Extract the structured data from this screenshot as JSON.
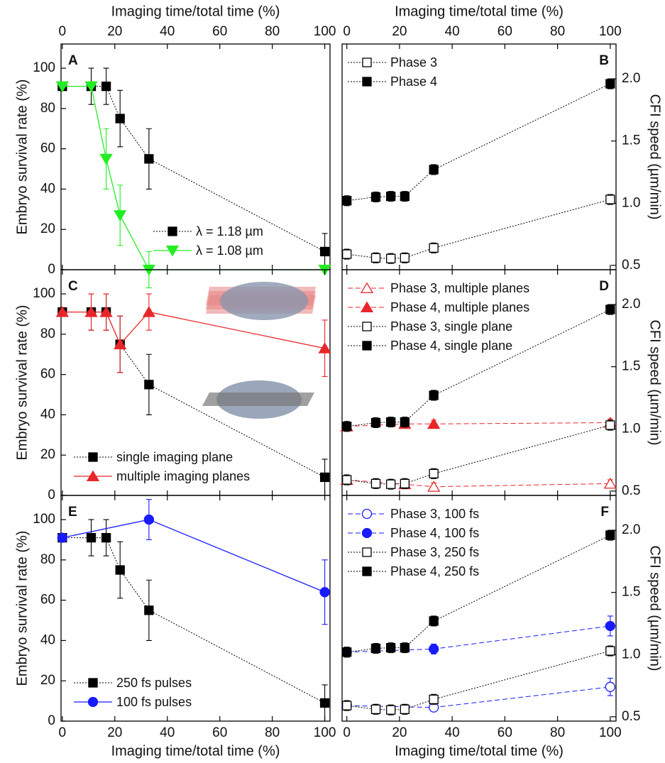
{
  "chart_data": [
    {
      "type": "line",
      "panel": "A",
      "xlabel": "Imaging time/total time (%)",
      "xaxis": "top",
      "ylabel": "Embryo survival rate (%)",
      "xlim": [
        -0.5,
        102
      ],
      "ylim": [
        0,
        112
      ],
      "xticks": [
        0,
        20,
        40,
        60,
        80,
        100
      ],
      "yticks": [
        0,
        20,
        40,
        60,
        80,
        100
      ],
      "legend": "lower right",
      "series": [
        {
          "name": "λ = 1.18 µm",
          "color": "#000000",
          "marker": "square",
          "filled": true,
          "linestyle": "dotted",
          "x": [
            0,
            11,
            16.7,
            22,
            33,
            100
          ],
          "values": [
            91,
            91,
            91,
            75,
            55,
            9
          ],
          "errors": [
            0,
            9,
            9,
            14,
            15,
            9
          ]
        },
        {
          "name": "λ = 1.08 µm",
          "color": "#22ee22",
          "marker": "triangle-down",
          "filled": true,
          "linestyle": "solid",
          "x": [
            0,
            11,
            16.7,
            22,
            33,
            100
          ],
          "values": [
            91,
            91,
            55,
            27,
            0,
            0
          ],
          "errors": [
            0,
            0,
            15,
            15,
            9,
            0
          ]
        }
      ]
    },
    {
      "type": "line",
      "panel": "B",
      "xlabel": "Imaging time/total time (%)",
      "xaxis": "top",
      "ylabel": "CFI speed (µm/min)",
      "xlim": [
        -1.8,
        102.2
      ],
      "ylim": [
        0.465,
        2.28
      ],
      "xticks": [
        0,
        20,
        40,
        60,
        80,
        100
      ],
      "yticks": [
        0.5,
        {
          "value": 1,
          "label": "1.0"
        },
        1.5,
        {
          "value": 2,
          "label": "2.0"
        }
      ],
      "legend": "upper left",
      "series": [
        {
          "name": "Phase 3",
          "color": "#000000",
          "marker": "square",
          "filled": false,
          "linestyle": "dotted",
          "x": [
            0,
            11,
            16.7,
            22,
            33,
            100
          ],
          "values": [
            0.59,
            0.56,
            0.555,
            0.56,
            0.64,
            1.03
          ],
          "errors": [
            0.04,
            0.04,
            0.04,
            0.04,
            0.04,
            0.04
          ]
        },
        {
          "name": "Phase 4",
          "color": "#000000",
          "marker": "square",
          "filled": true,
          "linestyle": "dotted",
          "x": [
            0,
            11,
            16.7,
            22,
            33,
            100
          ],
          "values": [
            1.02,
            1.05,
            1.055,
            1.055,
            1.27,
            1.96
          ],
          "errors": [
            0.04,
            0.04,
            0.04,
            0.04,
            0.04,
            0.04
          ]
        }
      ]
    },
    {
      "type": "line",
      "panel": "C",
      "xaxis": "none",
      "ylabel": "Embryo survival rate (%)",
      "xlim": [
        -0.5,
        102
      ],
      "ylim": [
        0,
        112
      ],
      "xticks": [
        0,
        20,
        40,
        60,
        80,
        100
      ],
      "yticks": [
        0,
        20,
        40,
        60,
        80,
        100
      ],
      "legend": "lower left",
      "series": [
        {
          "name": "single imaging plane",
          "color": "#000000",
          "marker": "square",
          "filled": true,
          "linestyle": "dotted",
          "x": [
            0,
            11,
            16.7,
            22,
            33,
            100
          ],
          "values": [
            91,
            91,
            91,
            75,
            55,
            9
          ],
          "errors": [
            0,
            9,
            9,
            14,
            15,
            9
          ]
        },
        {
          "name": "multiple imaging planes",
          "color": "#e8262a",
          "marker": "triangle-up",
          "filled": true,
          "linestyle": "solid",
          "x": [
            0,
            11,
            16.7,
            22,
            33,
            100
          ],
          "values": [
            91,
            91,
            91,
            75,
            91,
            73
          ],
          "errors": [
            0,
            9,
            9,
            14,
            9,
            14
          ]
        }
      ]
    },
    {
      "type": "line",
      "panel": "D",
      "xaxis": "none",
      "ylabel": "CFI speed (µm/min)",
      "xlim": [
        -1.8,
        102.2
      ],
      "ylim": [
        0.465,
        2.28
      ],
      "xticks": [
        0,
        20,
        40,
        60,
        80,
        100
      ],
      "yticks": [
        0.5,
        {
          "value": 1,
          "label": "1.0"
        },
        1.5,
        {
          "value": 2,
          "label": "2.0"
        }
      ],
      "legend": "upper left",
      "series": [
        {
          "name": "Phase 3, multiple planes",
          "color": "#e8262a",
          "marker": "triangle-up",
          "filled": false,
          "linestyle": "dashed",
          "x": [
            0,
            22,
            33,
            100
          ],
          "values": [
            0.59,
            0.555,
            0.535,
            0.56
          ],
          "errors": [
            0.03,
            0.03,
            0.03,
            0.03
          ]
        },
        {
          "name": "Phase 4, multiple planes",
          "color": "#e8262a",
          "marker": "triangle-up",
          "filled": true,
          "linestyle": "dashed",
          "x": [
            0,
            22,
            33,
            100
          ],
          "values": [
            1.02,
            1.04,
            1.04,
            1.05
          ],
          "errors": [
            0.03,
            0.03,
            0.03,
            0.03
          ]
        },
        {
          "name": "Phase 3, single plane",
          "color": "#000000",
          "marker": "square",
          "filled": false,
          "linestyle": "dotted",
          "x": [
            0,
            11,
            16.7,
            22,
            33,
            100
          ],
          "values": [
            0.59,
            0.56,
            0.555,
            0.56,
            0.64,
            1.03
          ],
          "errors": [
            0.04,
            0.04,
            0.04,
            0.04,
            0.04,
            0.04
          ]
        },
        {
          "name": "Phase 4, single plane",
          "color": "#000000",
          "marker": "square",
          "filled": true,
          "linestyle": "dotted",
          "x": [
            0,
            11,
            16.7,
            22,
            33,
            100
          ],
          "values": [
            1.02,
            1.05,
            1.055,
            1.055,
            1.27,
            1.96
          ],
          "errors": [
            0.04,
            0.04,
            0.04,
            0.04,
            0.04,
            0.04
          ]
        }
      ]
    },
    {
      "type": "line",
      "panel": "E",
      "xlabel": "Imaging time/total time (%)",
      "xaxis": "bottom",
      "ylabel": "Embryo survival rate (%)",
      "xlim": [
        -0.5,
        102
      ],
      "ylim": [
        0,
        112
      ],
      "xticks": [
        0,
        20,
        40,
        60,
        80,
        100
      ],
      "yticks": [
        0,
        20,
        40,
        60,
        80,
        100
      ],
      "legend": "lower left",
      "series": [
        {
          "name": "250 fs pulses",
          "color": "#000000",
          "marker": "square",
          "filled": true,
          "linestyle": "dotted",
          "x": [
            0,
            11,
            16.7,
            22,
            33,
            100
          ],
          "values": [
            91,
            91,
            91,
            75,
            55,
            9
          ],
          "errors": [
            0,
            9,
            9,
            14,
            15,
            9
          ]
        },
        {
          "name": "100 fs pulses",
          "color": "#1a1aff",
          "marker": "circle",
          "filled": true,
          "linestyle": "solid",
          "x": [
            0,
            33,
            100
          ],
          "values": [
            91,
            100,
            64
          ],
          "errors": [
            0,
            10,
            16
          ]
        }
      ]
    },
    {
      "type": "line",
      "panel": "F",
      "xlabel": "Imaging time/total time (%)",
      "xaxis": "bottom",
      "ylabel": "CFI speed (µm/min)",
      "xlim": [
        -1.8,
        102.2
      ],
      "ylim": [
        0.465,
        2.28
      ],
      "xticks": [
        0,
        20,
        40,
        60,
        80,
        100
      ],
      "yticks": [
        0.5,
        {
          "value": 1,
          "label": "1.0"
        },
        1.5,
        {
          "value": 2,
          "label": "2.0"
        }
      ],
      "legend": "upper left",
      "series": [
        {
          "name": "Phase 3, 100 fs",
          "color": "#1a1aff",
          "marker": "circle",
          "filled": false,
          "linestyle": "dashed",
          "x": [
            0,
            33,
            100
          ],
          "values": [
            0.59,
            0.575,
            0.74
          ],
          "errors": [
            0.03,
            0.03,
            0.07
          ]
        },
        {
          "name": "Phase 4, 100 fs",
          "color": "#1a1aff",
          "marker": "circle",
          "filled": true,
          "linestyle": "dashed",
          "x": [
            0,
            33,
            100
          ],
          "values": [
            1.02,
            1.045,
            1.23
          ],
          "errors": [
            0.04,
            0.04,
            0.08
          ]
        },
        {
          "name": "Phase 3, 250 fs",
          "color": "#000000",
          "marker": "square",
          "filled": false,
          "linestyle": "dotted",
          "x": [
            0,
            11,
            16.7,
            22,
            33,
            100
          ],
          "values": [
            0.59,
            0.56,
            0.555,
            0.56,
            0.64,
            1.03
          ],
          "errors": [
            0.04,
            0.04,
            0.04,
            0.04,
            0.04,
            0.04
          ]
        },
        {
          "name": "Phase 4, 250 fs",
          "color": "#000000",
          "marker": "square",
          "filled": true,
          "linestyle": "dotted",
          "x": [
            0,
            11,
            16.7,
            22,
            33,
            100
          ],
          "values": [
            1.02,
            1.05,
            1.055,
            1.055,
            1.27,
            1.96
          ],
          "errors": [
            0.04,
            0.04,
            0.04,
            0.04,
            0.04,
            0.04
          ]
        }
      ]
    }
  ]
}
